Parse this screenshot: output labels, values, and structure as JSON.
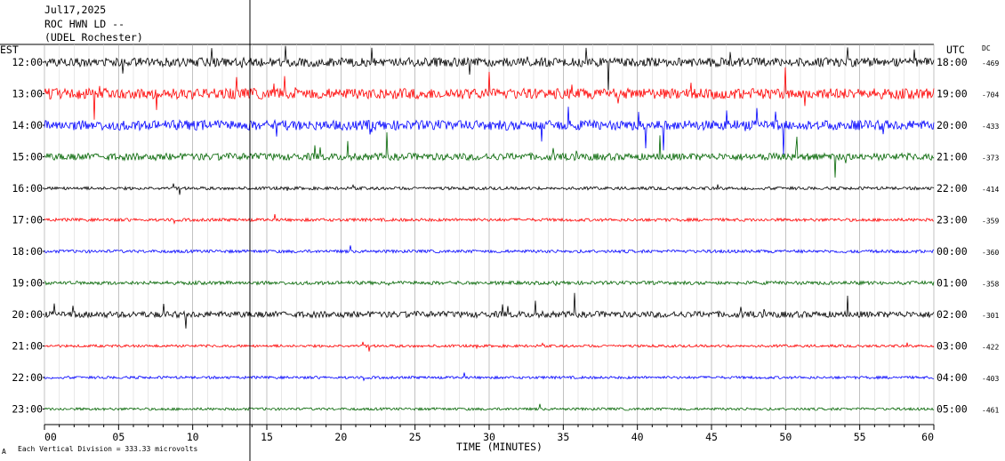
{
  "header": {
    "date": "Jul17,2025",
    "station": "ROC HWN LD --",
    "network": "(UDEL Rochester)",
    "left_tz": "EST",
    "right_tz": "UTC",
    "dc_label": "DC"
  },
  "footer": {
    "xlabel": "TIME (MINUTES)",
    "scale_note": "Each Vertical Division =  333.33 microvolts",
    "corner_mark": "A"
  },
  "chart_data": {
    "type": "line",
    "title": "",
    "xlabel": "TIME (MINUTES)",
    "ylabel": "",
    "xlim": [
      0,
      60
    ],
    "x_ticks": [
      "00",
      "05",
      "10",
      "15",
      "20",
      "25",
      "30",
      "35",
      "40",
      "45",
      "50",
      "55",
      "60"
    ],
    "grid": "vertical lines every minute",
    "colors": [
      "#000000",
      "#ff0000",
      "#0000ff",
      "#006400"
    ],
    "rows": [
      {
        "est": "12:00",
        "utc": "18:00",
        "dc": "-469",
        "color": "#000000",
        "activity": 1.0
      },
      {
        "est": "13:00",
        "utc": "19:00",
        "dc": "-704",
        "color": "#ff0000",
        "activity": 1.2
      },
      {
        "est": "14:00",
        "utc": "20:00",
        "dc": "-433",
        "color": "#0000ff",
        "activity": 1.1
      },
      {
        "est": "15:00",
        "utc": "21:00",
        "dc": "-373",
        "color": "#006400",
        "activity": 0.8
      },
      {
        "est": "16:00",
        "utc": "22:00",
        "dc": "-414",
        "color": "#000000",
        "activity": 0.35
      },
      {
        "est": "17:00",
        "utc": "23:00",
        "dc": "-359",
        "color": "#ff0000",
        "activity": 0.35
      },
      {
        "est": "18:00",
        "utc": "00:00",
        "dc": "-360",
        "color": "#0000ff",
        "activity": 0.35
      },
      {
        "est": "19:00",
        "utc": "01:00",
        "dc": "-358",
        "color": "#006400",
        "activity": 0.4
      },
      {
        "est": "20:00",
        "utc": "02:00",
        "dc": "-301",
        "color": "#000000",
        "activity": 0.7
      },
      {
        "est": "21:00",
        "utc": "03:00",
        "dc": "-422",
        "color": "#ff0000",
        "activity": 0.3
      },
      {
        "est": "22:00",
        "utc": "04:00",
        "dc": "-403",
        "color": "#0000ff",
        "activity": 0.3
      },
      {
        "est": "23:00",
        "utc": "05:00",
        "dc": "-461",
        "color": "#006400",
        "activity": 0.3
      }
    ]
  }
}
